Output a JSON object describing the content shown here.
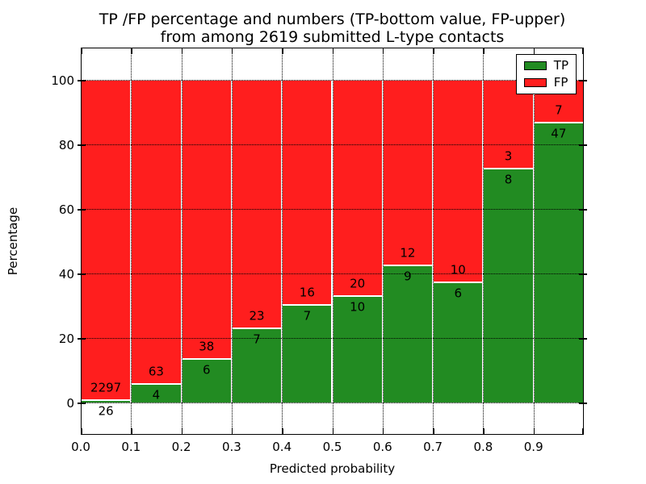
{
  "chart_data": {
    "type": "bar",
    "stacked": true,
    "normalized_to_percent": true,
    "title": "TP /FP percentage and numbers (TP-bottom value, FP-upper)",
    "subtitle": "from among 2619 submitted L-type contacts",
    "xlabel": "Predicted probability",
    "ylabel": "Percentage",
    "x_tick_labels": [
      "0.0",
      "0.1",
      "0.2",
      "0.3",
      "0.4",
      "0.5",
      "0.6",
      "0.7",
      "0.8",
      "0.9"
    ],
    "y_tick_values": [
      0,
      20,
      40,
      60,
      80,
      100
    ],
    "xlim": [
      0.0,
      1.0
    ],
    "ylim": [
      -10,
      110
    ],
    "grid": "dotted-black-over-bars",
    "bin_width": 0.1,
    "total_contacts": 2619,
    "colors": {
      "tp": "#228B22",
      "fp": "#FF1E1E"
    },
    "legend": {
      "position": "upper-right",
      "entries": [
        {
          "label": "TP",
          "color": "#228B22"
        },
        {
          "label": "FP",
          "color": "#FF1E1E"
        }
      ]
    },
    "bins": [
      {
        "range": [
          0.0,
          0.1
        ],
        "tp": 26,
        "fp": 2297
      },
      {
        "range": [
          0.1,
          0.2
        ],
        "tp": 4,
        "fp": 63
      },
      {
        "range": [
          0.2,
          0.3
        ],
        "tp": 6,
        "fp": 38
      },
      {
        "range": [
          0.3,
          0.4
        ],
        "tp": 7,
        "fp": 23
      },
      {
        "range": [
          0.4,
          0.5
        ],
        "tp": 7,
        "fp": 16
      },
      {
        "range": [
          0.5,
          0.6
        ],
        "tp": 10,
        "fp": 20
      },
      {
        "range": [
          0.6,
          0.7
        ],
        "tp": 9,
        "fp": 12
      },
      {
        "range": [
          0.7,
          0.8
        ],
        "tp": 6,
        "fp": 10
      },
      {
        "range": [
          0.8,
          0.9
        ],
        "tp": 8,
        "fp": 3
      },
      {
        "range": [
          0.9,
          1.0
        ],
        "tp": 47,
        "fp": 7
      }
    ]
  }
}
